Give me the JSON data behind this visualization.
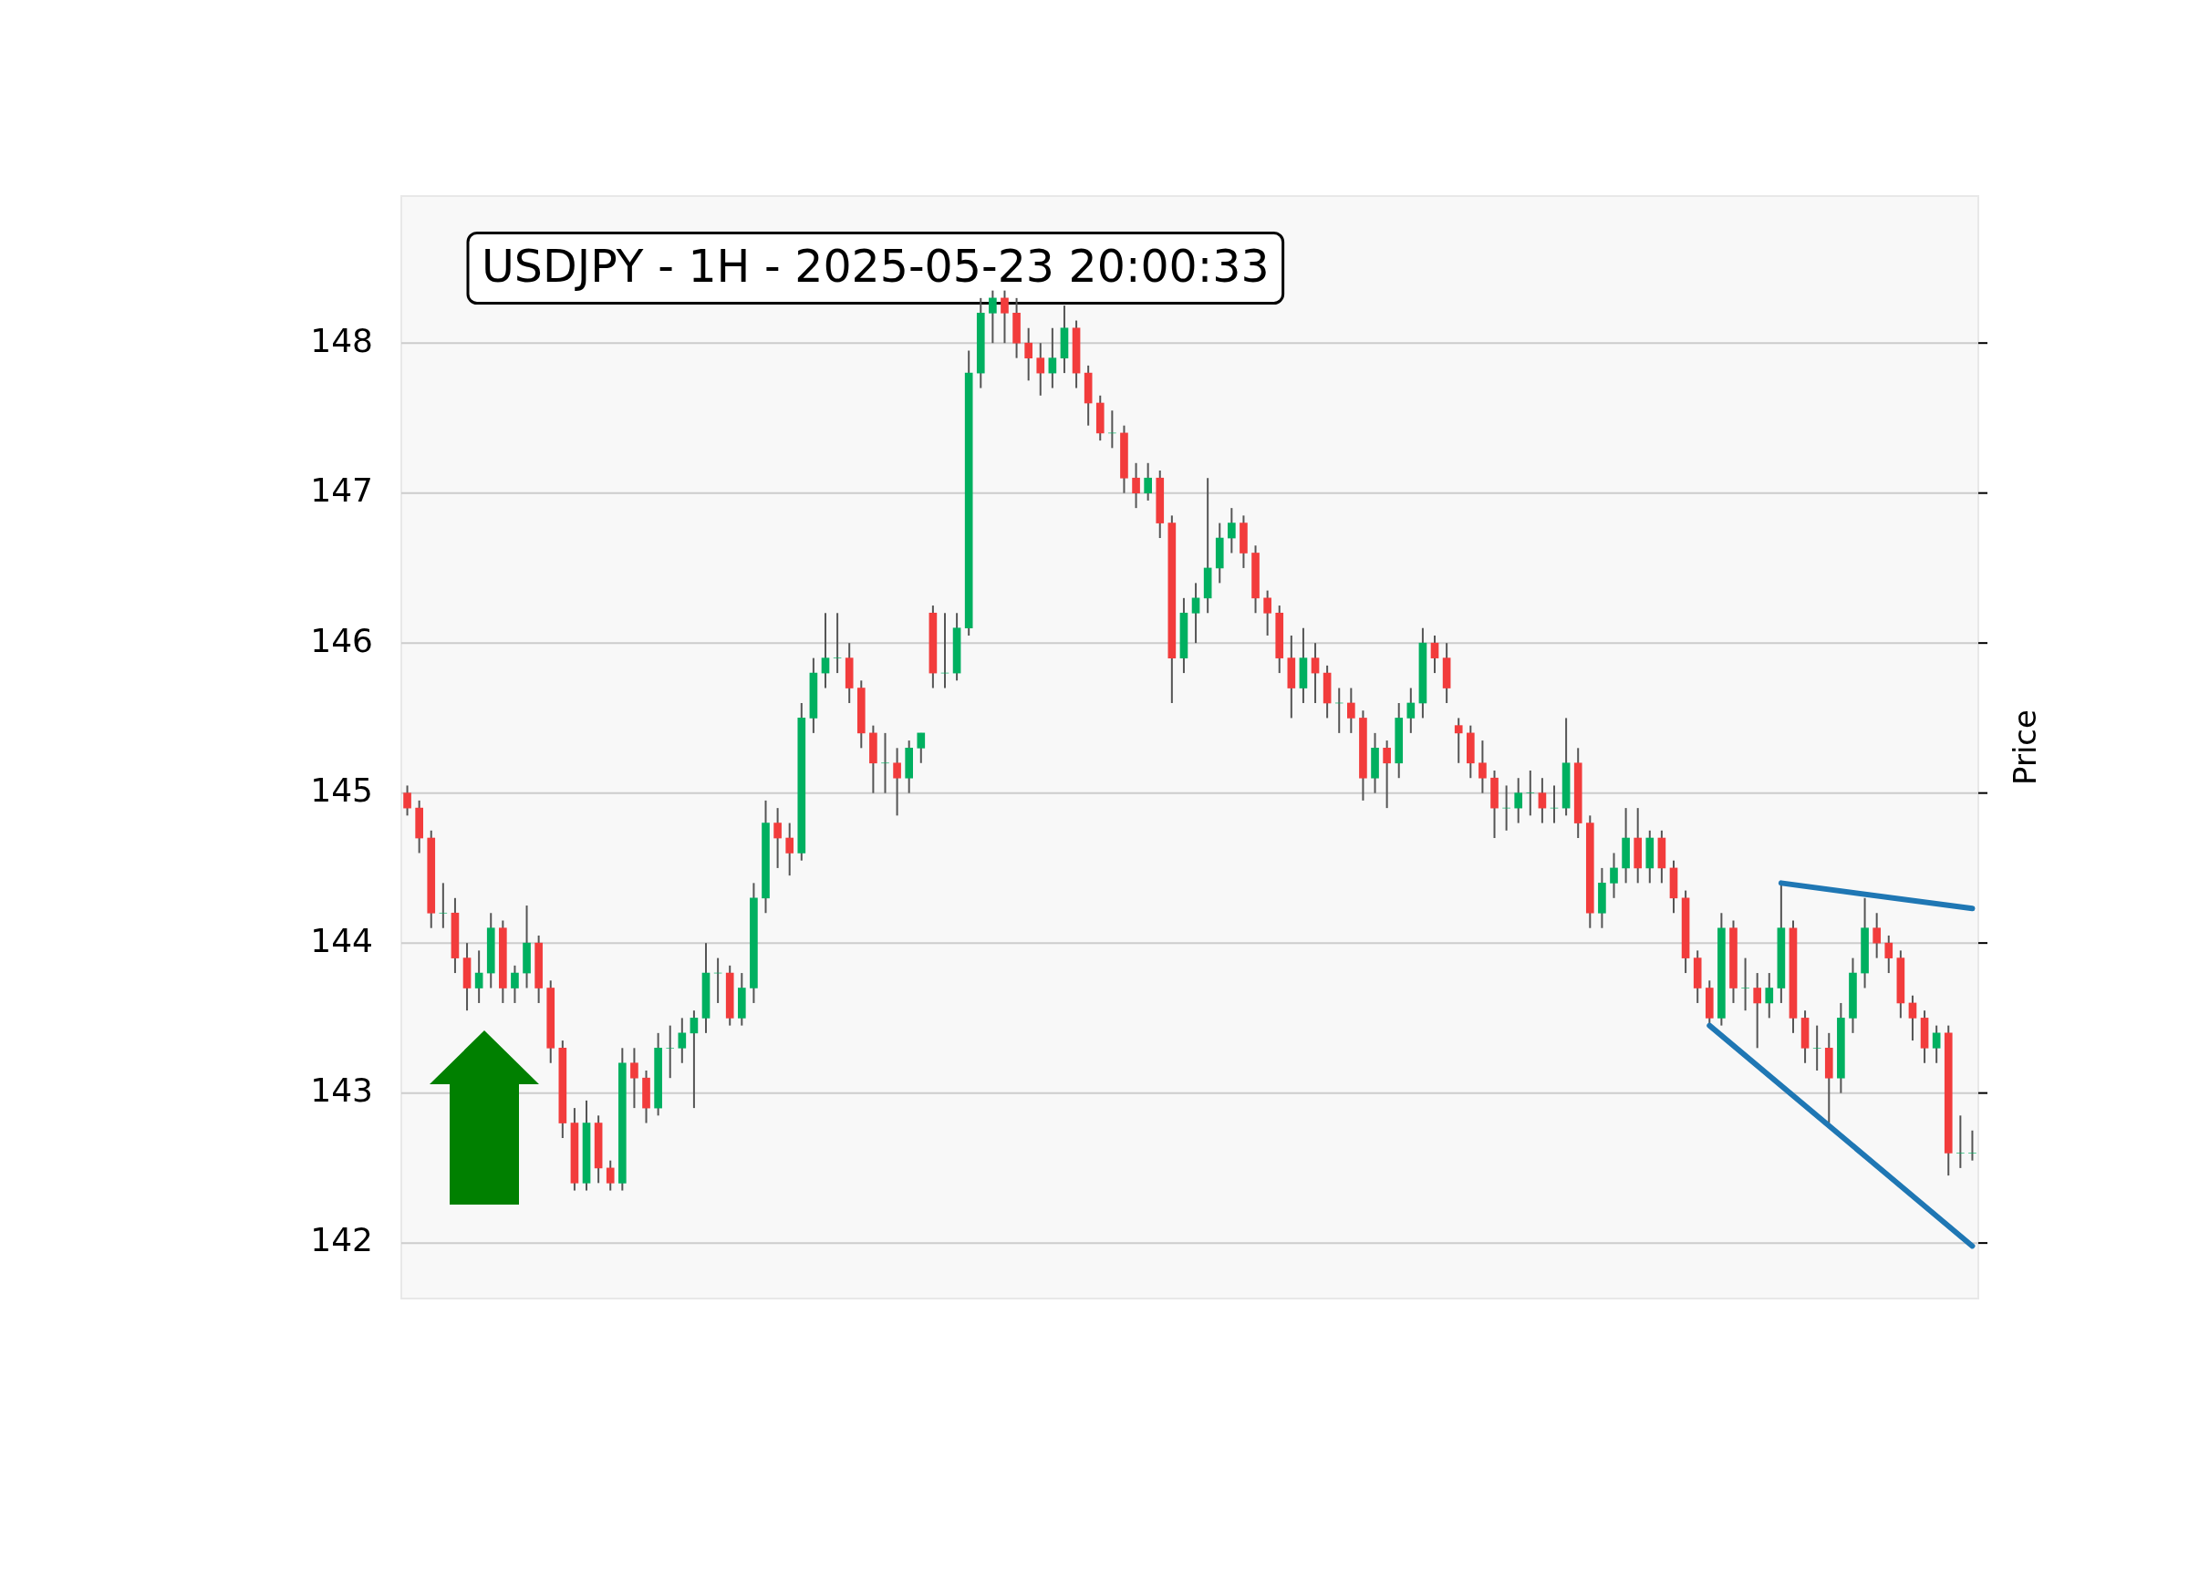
{
  "chart_data": {
    "type": "candlestick",
    "title": "USDJPY - 1H - 2025-05-23 20:00:33",
    "ylabel": "Price",
    "categories": [
      null,
      null,
      null,
      null,
      null,
      null,
      null,
      null,
      null,
      null,
      null,
      null,
      null,
      null,
      null,
      null,
      null,
      null,
      null,
      null,
      null,
      null,
      null,
      null,
      null,
      null,
      null,
      null,
      null,
      null,
      null,
      null,
      null,
      null,
      null,
      null,
      null,
      null,
      null,
      null,
      null,
      null,
      null,
      null,
      null,
      null,
      null,
      null,
      null,
      null,
      null,
      null,
      null,
      null,
      null,
      null,
      null,
      null,
      null,
      null,
      null,
      null,
      null,
      null,
      null,
      null,
      null,
      null,
      null,
      null,
      null,
      null,
      null,
      null,
      null,
      null,
      null,
      null,
      null,
      null,
      null,
      null,
      null,
      null,
      null,
      null,
      null,
      null,
      null,
      null,
      null,
      null,
      null,
      null,
      null,
      null,
      null,
      null,
      null,
      null,
      null,
      null,
      null,
      null,
      null,
      null,
      null,
      null,
      null,
      null,
      null,
      null,
      null,
      null,
      null,
      null,
      null,
      null,
      null,
      null,
      null,
      null,
      null,
      null,
      null,
      null,
      null,
      null,
      null,
      null,
      null,
      null
    ],
    "ohlc": [
      [
        145.0,
        145.05,
        144.85,
        144.9
      ],
      [
        144.9,
        144.95,
        144.6,
        144.7
      ],
      [
        144.7,
        144.75,
        144.1,
        144.2
      ],
      [
        144.2,
        144.4,
        144.1,
        144.2
      ],
      [
        144.2,
        144.3,
        143.8,
        143.9
      ],
      [
        143.9,
        144.0,
        143.55,
        143.7
      ],
      [
        143.7,
        143.95,
        143.6,
        143.8
      ],
      [
        143.8,
        144.2,
        143.7,
        144.1
      ],
      [
        144.1,
        144.15,
        143.6,
        143.7
      ],
      [
        143.7,
        143.85,
        143.6,
        143.8
      ],
      [
        143.8,
        144.25,
        143.7,
        144.0
      ],
      [
        144.0,
        144.05,
        143.6,
        143.7
      ],
      [
        143.7,
        143.75,
        143.2,
        143.3
      ],
      [
        143.3,
        143.35,
        142.7,
        142.8
      ],
      [
        142.8,
        142.9,
        142.35,
        142.4
      ],
      [
        142.4,
        142.95,
        142.35,
        142.8
      ],
      [
        142.8,
        142.85,
        142.4,
        142.5
      ],
      [
        142.5,
        142.55,
        142.35,
        142.4
      ],
      [
        142.4,
        143.3,
        142.35,
        143.2
      ],
      [
        143.2,
        143.3,
        142.9,
        143.1
      ],
      [
        143.1,
        143.15,
        142.8,
        142.9
      ],
      [
        142.9,
        143.4,
        142.85,
        143.3
      ],
      [
        143.3,
        143.45,
        143.1,
        143.3
      ],
      [
        143.3,
        143.5,
        143.2,
        143.4
      ],
      [
        143.4,
        143.55,
        142.9,
        143.5
      ],
      [
        143.5,
        144.0,
        143.4,
        143.8
      ],
      [
        143.8,
        143.9,
        143.6,
        143.8
      ],
      [
        143.8,
        143.85,
        143.45,
        143.5
      ],
      [
        143.5,
        143.8,
        143.45,
        143.7
      ],
      [
        143.7,
        144.4,
        143.6,
        144.3
      ],
      [
        144.3,
        144.95,
        144.2,
        144.8
      ],
      [
        144.8,
        144.9,
        144.5,
        144.7
      ],
      [
        144.7,
        144.8,
        144.45,
        144.6
      ],
      [
        144.6,
        145.6,
        144.55,
        145.5
      ],
      [
        145.5,
        145.9,
        145.4,
        145.8
      ],
      [
        145.8,
        146.2,
        145.7,
        145.9
      ],
      [
        145.9,
        146.2,
        145.8,
        145.9
      ],
      [
        145.9,
        146.0,
        145.6,
        145.7
      ],
      [
        145.7,
        145.75,
        145.3,
        145.4
      ],
      [
        145.4,
        145.45,
        145.0,
        145.2
      ],
      [
        145.2,
        145.4,
        145.0,
        145.2
      ],
      [
        145.2,
        145.3,
        144.85,
        145.1
      ],
      [
        145.1,
        145.35,
        145.0,
        145.3
      ],
      [
        145.3,
        145.4,
        145.2,
        145.4
      ],
      [
        146.2,
        146.25,
        145.7,
        145.8
      ],
      [
        145.8,
        146.2,
        145.7,
        145.8
      ],
      [
        145.8,
        146.2,
        145.75,
        146.1
      ],
      [
        146.1,
        147.95,
        146.05,
        147.8
      ],
      [
        147.8,
        148.3,
        147.7,
        148.2
      ],
      [
        148.2,
        148.35,
        148.0,
        148.3
      ],
      [
        148.3,
        148.35,
        148.0,
        148.2
      ],
      [
        148.2,
        148.3,
        147.9,
        148.0
      ],
      [
        148.0,
        148.1,
        147.75,
        147.9
      ],
      [
        147.9,
        148.0,
        147.65,
        147.8
      ],
      [
        147.8,
        148.1,
        147.7,
        147.9
      ],
      [
        147.9,
        148.25,
        147.8,
        148.1
      ],
      [
        148.1,
        148.15,
        147.7,
        147.8
      ],
      [
        147.8,
        147.85,
        147.45,
        147.6
      ],
      [
        147.6,
        147.65,
        147.35,
        147.4
      ],
      [
        147.4,
        147.55,
        147.3,
        147.4
      ],
      [
        147.4,
        147.45,
        147.0,
        147.1
      ],
      [
        147.1,
        147.2,
        146.9,
        147.0
      ],
      [
        147.0,
        147.2,
        146.95,
        147.1
      ],
      [
        147.1,
        147.15,
        146.7,
        146.8
      ],
      [
        146.8,
        146.85,
        145.6,
        145.9
      ],
      [
        145.9,
        146.3,
        145.8,
        146.2
      ],
      [
        146.2,
        146.4,
        146.0,
        146.3
      ],
      [
        146.3,
        147.1,
        146.2,
        146.5
      ],
      [
        146.5,
        146.8,
        146.4,
        146.7
      ],
      [
        146.7,
        146.9,
        146.6,
        146.8
      ],
      [
        146.8,
        146.85,
        146.5,
        146.6
      ],
      [
        146.6,
        146.65,
        146.2,
        146.3
      ],
      [
        146.3,
        146.35,
        146.05,
        146.2
      ],
      [
        146.2,
        146.25,
        145.8,
        145.9
      ],
      [
        145.9,
        146.05,
        145.5,
        145.7
      ],
      [
        145.7,
        146.1,
        145.6,
        145.9
      ],
      [
        145.9,
        146.0,
        145.6,
        145.8
      ],
      [
        145.8,
        145.85,
        145.5,
        145.6
      ],
      [
        145.6,
        145.7,
        145.4,
        145.6
      ],
      [
        145.6,
        145.7,
        145.4,
        145.5
      ],
      [
        145.5,
        145.55,
        144.95,
        145.1
      ],
      [
        145.1,
        145.4,
        145.0,
        145.3
      ],
      [
        145.3,
        145.35,
        144.9,
        145.2
      ],
      [
        145.2,
        145.6,
        145.1,
        145.5
      ],
      [
        145.5,
        145.7,
        145.4,
        145.6
      ],
      [
        145.6,
        146.1,
        145.5,
        146.0
      ],
      [
        146.0,
        146.05,
        145.8,
        145.9
      ],
      [
        145.9,
        146.0,
        145.6,
        145.7
      ],
      [
        145.45,
        145.5,
        145.2,
        145.4
      ],
      [
        145.4,
        145.45,
        145.1,
        145.2
      ],
      [
        145.2,
        145.35,
        145.0,
        145.1
      ],
      [
        145.1,
        145.15,
        144.7,
        144.9
      ],
      [
        144.9,
        145.05,
        144.75,
        144.9
      ],
      [
        144.9,
        145.1,
        144.8,
        145.0
      ],
      [
        145.0,
        145.15,
        144.85,
        145.0
      ],
      [
        145.0,
        145.1,
        144.8,
        144.9
      ],
      [
        144.9,
        145.05,
        144.8,
        144.9
      ],
      [
        144.9,
        145.5,
        144.85,
        145.2
      ],
      [
        145.2,
        145.3,
        144.7,
        144.8
      ],
      [
        144.8,
        144.85,
        144.1,
        144.2
      ],
      [
        144.2,
        144.5,
        144.1,
        144.4
      ],
      [
        144.4,
        144.6,
        144.3,
        144.5
      ],
      [
        144.5,
        144.9,
        144.4,
        144.7
      ],
      [
        144.7,
        144.9,
        144.4,
        144.5
      ],
      [
        144.5,
        144.75,
        144.4,
        144.7
      ],
      [
        144.7,
        144.75,
        144.4,
        144.5
      ],
      [
        144.5,
        144.55,
        144.2,
        144.3
      ],
      [
        144.3,
        144.35,
        143.8,
        143.9
      ],
      [
        143.9,
        143.95,
        143.6,
        143.7
      ],
      [
        143.7,
        143.75,
        143.45,
        143.5
      ],
      [
        143.5,
        144.2,
        143.45,
        144.1
      ],
      [
        144.1,
        144.15,
        143.6,
        143.7
      ],
      [
        143.7,
        143.9,
        143.55,
        143.7
      ],
      [
        143.7,
        143.8,
        143.3,
        143.6
      ],
      [
        143.6,
        143.8,
        143.5,
        143.7
      ],
      [
        143.7,
        144.4,
        143.6,
        144.1
      ],
      [
        144.1,
        144.15,
        143.4,
        143.5
      ],
      [
        143.5,
        143.55,
        143.2,
        143.3
      ],
      [
        143.3,
        143.45,
        143.15,
        143.3
      ],
      [
        143.3,
        143.4,
        142.8,
        143.1
      ],
      [
        143.1,
        143.6,
        143.0,
        143.5
      ],
      [
        143.5,
        143.9,
        143.4,
        143.8
      ],
      [
        143.8,
        144.3,
        143.7,
        144.1
      ],
      [
        144.1,
        144.2,
        143.9,
        144.0
      ],
      [
        144.0,
        144.05,
        143.8,
        143.9
      ],
      [
        143.9,
        143.95,
        143.5,
        143.6
      ],
      [
        143.6,
        143.65,
        143.35,
        143.5
      ],
      [
        143.5,
        143.55,
        143.2,
        143.3
      ],
      [
        143.3,
        143.45,
        143.2,
        143.4
      ],
      [
        143.4,
        143.45,
        142.45,
        142.6
      ],
      [
        142.6,
        142.85,
        142.5,
        142.6
      ],
      [
        142.6,
        142.75,
        142.55,
        142.6
      ]
    ],
    "series": [
      {
        "type": "line",
        "color": "#1f77b4",
        "values": [
          null,
          null,
          null,
          null,
          null,
          null,
          null,
          null,
          null,
          null,
          null,
          null,
          null,
          null,
          null,
          null,
          null,
          null,
          null,
          null,
          null,
          null,
          null,
          null,
          null,
          null,
          null,
          null,
          null,
          null,
          null,
          null,
          null,
          null,
          null,
          null,
          null,
          null,
          null,
          null,
          null,
          null,
          null,
          null,
          null,
          null,
          null,
          null,
          null,
          null,
          null,
          null,
          null,
          null,
          null,
          null,
          null,
          null,
          null,
          null,
          null,
          null,
          null,
          null,
          null,
          null,
          null,
          null,
          null,
          null,
          null,
          null,
          null,
          null,
          null,
          null,
          null,
          null,
          null,
          null,
          null,
          null,
          null,
          null,
          null,
          null,
          null,
          null,
          null,
          null,
          null,
          null,
          null,
          null,
          null,
          null,
          null,
          null,
          null,
          null,
          null,
          null,
          null,
          null,
          null,
          null,
          null,
          null,
          null,
          null,
          null,
          null,
          null,
          null,
          null,
          144.4,
          null,
          null,
          null,
          null,
          null,
          null,
          null,
          null,
          null,
          null,
          null,
          null,
          null,
          null,
          null,
          144.23
        ]
      },
      {
        "type": "line",
        "color": "#1f77b4",
        "values": [
          null,
          null,
          null,
          null,
          null,
          null,
          null,
          null,
          null,
          null,
          null,
          null,
          null,
          null,
          null,
          null,
          null,
          null,
          null,
          null,
          null,
          null,
          null,
          null,
          null,
          null,
          null,
          null,
          null,
          null,
          null,
          null,
          null,
          null,
          null,
          null,
          null,
          null,
          null,
          null,
          null,
          null,
          null,
          null,
          null,
          null,
          null,
          null,
          null,
          null,
          null,
          null,
          null,
          null,
          null,
          null,
          null,
          null,
          null,
          null,
          null,
          null,
          null,
          null,
          null,
          null,
          null,
          null,
          null,
          null,
          null,
          null,
          null,
          null,
          null,
          null,
          null,
          null,
          null,
          null,
          null,
          null,
          null,
          null,
          null,
          null,
          null,
          null,
          null,
          null,
          null,
          null,
          null,
          null,
          null,
          null,
          null,
          null,
          null,
          null,
          null,
          null,
          null,
          null,
          null,
          null,
          null,
          null,
          null,
          143.45,
          null,
          null,
          null,
          null,
          null,
          null,
          null,
          null,
          null,
          null,
          null,
          null,
          null,
          null,
          null,
          null,
          null,
          null,
          null,
          null,
          null,
          141.98
        ]
      }
    ],
    "ylim": [
      141.63,
      148.98
    ],
    "yticks": [
      142,
      143,
      144,
      145,
      146,
      147,
      148
    ],
    "grid": "y",
    "tick_labels": "y",
    "legend": false
  }
}
